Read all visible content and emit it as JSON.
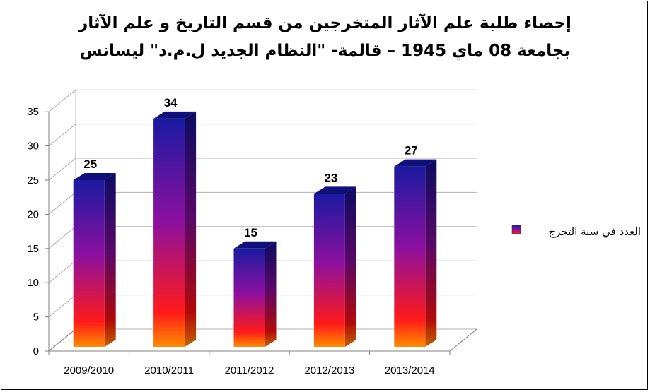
{
  "title": {
    "line1": "إحصاء طلبة علم الآثار المتخرجين من قسم التاريخ و علم الآثار",
    "line2": "بجامعة 08 ماي 1945 – قالمة- \"النظام الجديد ل.م.د\"  ليسانس"
  },
  "colors": {
    "bar_top": "#1a1aa0",
    "bar_mid": "#8c10a0",
    "bar_low": "#ff1a1a",
    "bar_base": "#ff8c00",
    "grid": "#b0b0b0",
    "axis": "#808080"
  },
  "chart_data": {
    "type": "bar",
    "style": "3d-column",
    "categories": [
      "2009/2010",
      "2010/2011",
      "2011/2012",
      "2012/2013",
      "2013/2014"
    ],
    "series": [
      {
        "name": "العدد في سنة التخرج",
        "values": [
          25,
          34,
          15,
          23,
          27
        ]
      }
    ],
    "ylim": [
      0,
      35
    ],
    "yticks": [
      "0",
      "5",
      "10",
      "15",
      "20",
      "25",
      "30",
      "35"
    ],
    "grid": true,
    "data_labels": true,
    "legend_position": "right"
  }
}
